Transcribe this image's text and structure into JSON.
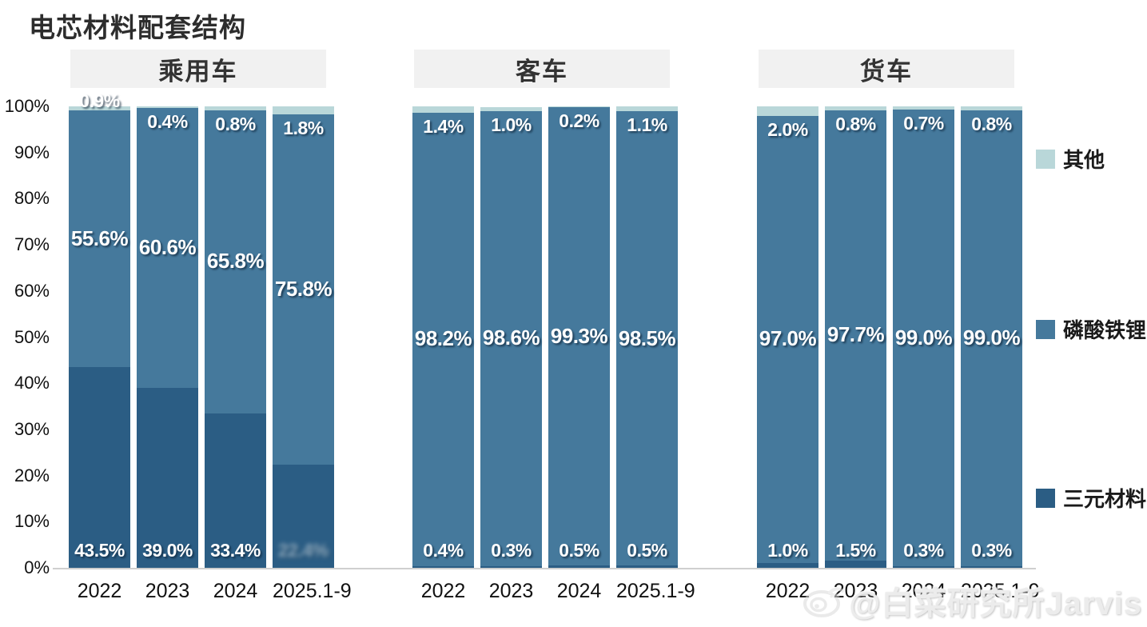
{
  "title": "电芯材料配套结构",
  "watermark": {
    "text": "@白菜研究所Jarvis",
    "icon": "weibo-logo"
  },
  "colors": {
    "other": "#b9d7d9",
    "lfp": "#45799c",
    "ternary": "#2b5d84",
    "header_bg": "#f1f1f1",
    "axis_line": "#cfcfcf"
  },
  "y_axis_ticks": [
    "100%",
    "90%",
    "80%",
    "70%",
    "60%",
    "50%",
    "40%",
    "30%",
    "20%",
    "10%",
    "0%"
  ],
  "legend": [
    {
      "label": "其他",
      "key": "other"
    },
    {
      "label": "磷酸铁锂",
      "key": "lfp"
    },
    {
      "label": "三元材料",
      "key": "ternary"
    }
  ],
  "chart_data": {
    "type": "bar",
    "stacked": true,
    "title": "电芯材料配套结构",
    "ylim": [
      0,
      100
    ],
    "unit": "%",
    "grid": false,
    "legend_position": "right",
    "categories": [
      "2022",
      "2023",
      "2024",
      "2025.1-9"
    ],
    "groups": [
      {
        "name": "乘用车",
        "series": [
          {
            "name": "三元材料",
            "key": "ternary",
            "values": [
              43.5,
              39.0,
              33.4,
              22.4
            ]
          },
          {
            "name": "磷酸铁锂",
            "key": "lfp",
            "values": [
              55.6,
              60.6,
              65.8,
              75.8
            ]
          },
          {
            "name": "其他",
            "key": "other",
            "values": [
              0.9,
              0.4,
              0.8,
              1.8
            ]
          }
        ],
        "top_label_outside": [
          true,
          false,
          false,
          false
        ],
        "blurred_bottom_label": [
          false,
          false,
          false,
          true
        ]
      },
      {
        "name": "客车",
        "series": [
          {
            "name": "三元材料",
            "key": "ternary",
            "values": [
              0.4,
              0.3,
              0.5,
              0.5
            ]
          },
          {
            "name": "磷酸铁锂",
            "key": "lfp",
            "values": [
              98.2,
              98.6,
              99.3,
              98.5
            ]
          },
          {
            "name": "其他",
            "key": "other",
            "values": [
              1.4,
              1.0,
              0.2,
              1.1
            ]
          }
        ],
        "top_label_outside": [
          false,
          false,
          false,
          false
        ],
        "blurred_bottom_label": [
          false,
          false,
          false,
          false
        ]
      },
      {
        "name": "货车",
        "series": [
          {
            "name": "三元材料",
            "key": "ternary",
            "values": [
              1.0,
              1.5,
              0.3,
              0.3
            ]
          },
          {
            "name": "磷酸铁锂",
            "key": "lfp",
            "values": [
              97.0,
              97.7,
              99.0,
              99.0
            ]
          },
          {
            "name": "其他",
            "key": "other",
            "values": [
              2.0,
              0.8,
              0.7,
              0.8
            ]
          }
        ],
        "top_label_outside": [
          false,
          false,
          false,
          false
        ],
        "blurred_bottom_label": [
          false,
          false,
          false,
          false
        ]
      }
    ]
  }
}
